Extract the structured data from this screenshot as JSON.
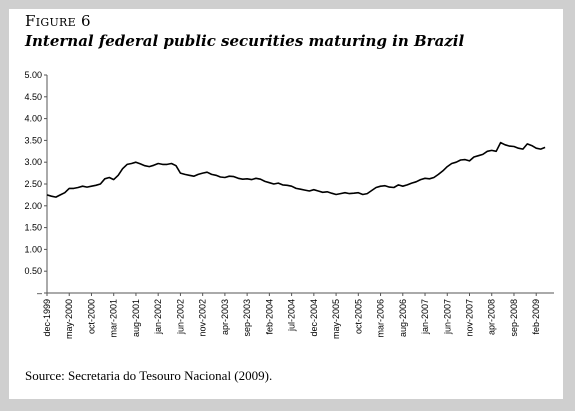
{
  "figure": {
    "label": "Figure 6",
    "title": "Internal federal public securities maturing in Brazil",
    "source": "Source: Secretaria do Tesouro Nacional (2009)."
  },
  "chart_data": {
    "type": "line",
    "title": "",
    "xlabel": "",
    "ylabel": "",
    "ylim": [
      0,
      5
    ],
    "yticks": [
      {
        "value": 0,
        "label": "–"
      },
      {
        "value": 0.5,
        "label": "0.50"
      },
      {
        "value": 1.0,
        "label": "1.00"
      },
      {
        "value": 1.5,
        "label": "1.50"
      },
      {
        "value": 2.0,
        "label": "2.00"
      },
      {
        "value": 2.5,
        "label": "2.50"
      },
      {
        "value": 3.0,
        "label": "3.00"
      },
      {
        "value": 3.5,
        "label": "3.50"
      },
      {
        "value": 4.0,
        "label": "4.00"
      },
      {
        "value": 4.5,
        "label": "4.50"
      },
      {
        "value": 5.0,
        "label": "5.00"
      }
    ],
    "xlim": [
      "1999-12",
      "2009-06"
    ],
    "xticks": [
      "dec-1999",
      "may-2000",
      "oct-2000",
      "mar-2001",
      "aug-2001",
      "jan-2002",
      "jun-2002",
      "nov-2002",
      "apr-2003",
      "sep-2003",
      "feb-2004",
      "jul-2004",
      "dec-2004",
      "may-2005",
      "oct-2005",
      "mar-2006",
      "aug-2006",
      "jan-2007",
      "jun-2007",
      "nov-2007",
      "apr-2008",
      "sep-2008",
      "feb-2009"
    ],
    "grid": false,
    "series": [
      {
        "name": "",
        "color": "#000000",
        "points": [
          [
            "1999-12",
            2.25
          ],
          [
            "2000-01",
            2.22
          ],
          [
            "2000-02",
            2.2
          ],
          [
            "2000-03",
            2.25
          ],
          [
            "2000-04",
            2.3
          ],
          [
            "2000-05",
            2.4
          ],
          [
            "2000-06",
            2.4
          ],
          [
            "2000-07",
            2.42
          ],
          [
            "2000-08",
            2.45
          ],
          [
            "2000-09",
            2.43
          ],
          [
            "2000-10",
            2.45
          ],
          [
            "2000-11",
            2.47
          ],
          [
            "2000-12",
            2.5
          ],
          [
            "2001-01",
            2.62
          ],
          [
            "2001-02",
            2.65
          ],
          [
            "2001-03",
            2.6
          ],
          [
            "2001-04",
            2.7
          ],
          [
            "2001-05",
            2.85
          ],
          [
            "2001-06",
            2.95
          ],
          [
            "2001-07",
            2.97
          ],
          [
            "2001-08",
            3.0
          ],
          [
            "2001-09",
            2.96
          ],
          [
            "2001-10",
            2.92
          ],
          [
            "2001-11",
            2.9
          ],
          [
            "2001-12",
            2.93
          ],
          [
            "2002-01",
            2.97
          ],
          [
            "2002-02",
            2.95
          ],
          [
            "2002-03",
            2.95
          ],
          [
            "2002-04",
            2.97
          ],
          [
            "2002-05",
            2.92
          ],
          [
            "2002-06",
            2.75
          ],
          [
            "2002-07",
            2.72
          ],
          [
            "2002-08",
            2.7
          ],
          [
            "2002-09",
            2.68
          ],
          [
            "2002-10",
            2.72
          ],
          [
            "2002-11",
            2.75
          ],
          [
            "2002-12",
            2.77
          ],
          [
            "2003-01",
            2.72
          ],
          [
            "2003-02",
            2.7
          ],
          [
            "2003-03",
            2.66
          ],
          [
            "2003-04",
            2.65
          ],
          [
            "2003-05",
            2.68
          ],
          [
            "2003-06",
            2.67
          ],
          [
            "2003-07",
            2.63
          ],
          [
            "2003-08",
            2.61
          ],
          [
            "2003-09",
            2.62
          ],
          [
            "2003-10",
            2.6
          ],
          [
            "2003-11",
            2.63
          ],
          [
            "2003-12",
            2.61
          ],
          [
            "2004-01",
            2.56
          ],
          [
            "2004-02",
            2.53
          ],
          [
            "2004-03",
            2.5
          ],
          [
            "2004-04",
            2.52
          ],
          [
            "2004-05",
            2.48
          ],
          [
            "2004-06",
            2.47
          ],
          [
            "2004-07",
            2.45
          ],
          [
            "2004-08",
            2.4
          ],
          [
            "2004-09",
            2.38
          ],
          [
            "2004-10",
            2.36
          ],
          [
            "2004-11",
            2.34
          ],
          [
            "2004-12",
            2.37
          ],
          [
            "2005-01",
            2.34
          ],
          [
            "2005-02",
            2.31
          ],
          [
            "2005-03",
            2.32
          ],
          [
            "2005-04",
            2.29
          ],
          [
            "2005-05",
            2.26
          ],
          [
            "2005-06",
            2.28
          ],
          [
            "2005-07",
            2.3
          ],
          [
            "2005-08",
            2.28
          ],
          [
            "2005-09",
            2.29
          ],
          [
            "2005-10",
            2.3
          ],
          [
            "2005-11",
            2.26
          ],
          [
            "2005-12",
            2.28
          ],
          [
            "2006-01",
            2.35
          ],
          [
            "2006-02",
            2.42
          ],
          [
            "2006-03",
            2.45
          ],
          [
            "2006-04",
            2.46
          ],
          [
            "2006-05",
            2.43
          ],
          [
            "2006-06",
            2.42
          ],
          [
            "2006-07",
            2.48
          ],
          [
            "2006-08",
            2.45
          ],
          [
            "2006-09",
            2.48
          ],
          [
            "2006-10",
            2.52
          ],
          [
            "2006-11",
            2.55
          ],
          [
            "2006-12",
            2.6
          ],
          [
            "2007-01",
            2.63
          ],
          [
            "2007-02",
            2.62
          ],
          [
            "2007-03",
            2.65
          ],
          [
            "2007-04",
            2.72
          ],
          [
            "2007-05",
            2.8
          ],
          [
            "2007-06",
            2.9
          ],
          [
            "2007-07",
            2.97
          ],
          [
            "2007-08",
            3.0
          ],
          [
            "2007-09",
            3.05
          ],
          [
            "2007-10",
            3.06
          ],
          [
            "2007-11",
            3.03
          ],
          [
            "2007-12",
            3.12
          ],
          [
            "2008-01",
            3.15
          ],
          [
            "2008-02",
            3.18
          ],
          [
            "2008-03",
            3.25
          ],
          [
            "2008-04",
            3.27
          ],
          [
            "2008-05",
            3.25
          ],
          [
            "2008-06",
            3.45
          ],
          [
            "2008-07",
            3.4
          ],
          [
            "2008-08",
            3.37
          ],
          [
            "2008-09",
            3.36
          ],
          [
            "2008-10",
            3.32
          ],
          [
            "2008-11",
            3.3
          ],
          [
            "2008-12",
            3.42
          ],
          [
            "2009-01",
            3.38
          ],
          [
            "2009-02",
            3.32
          ],
          [
            "2009-03",
            3.3
          ],
          [
            "2009-04",
            3.34
          ]
        ]
      }
    ]
  }
}
